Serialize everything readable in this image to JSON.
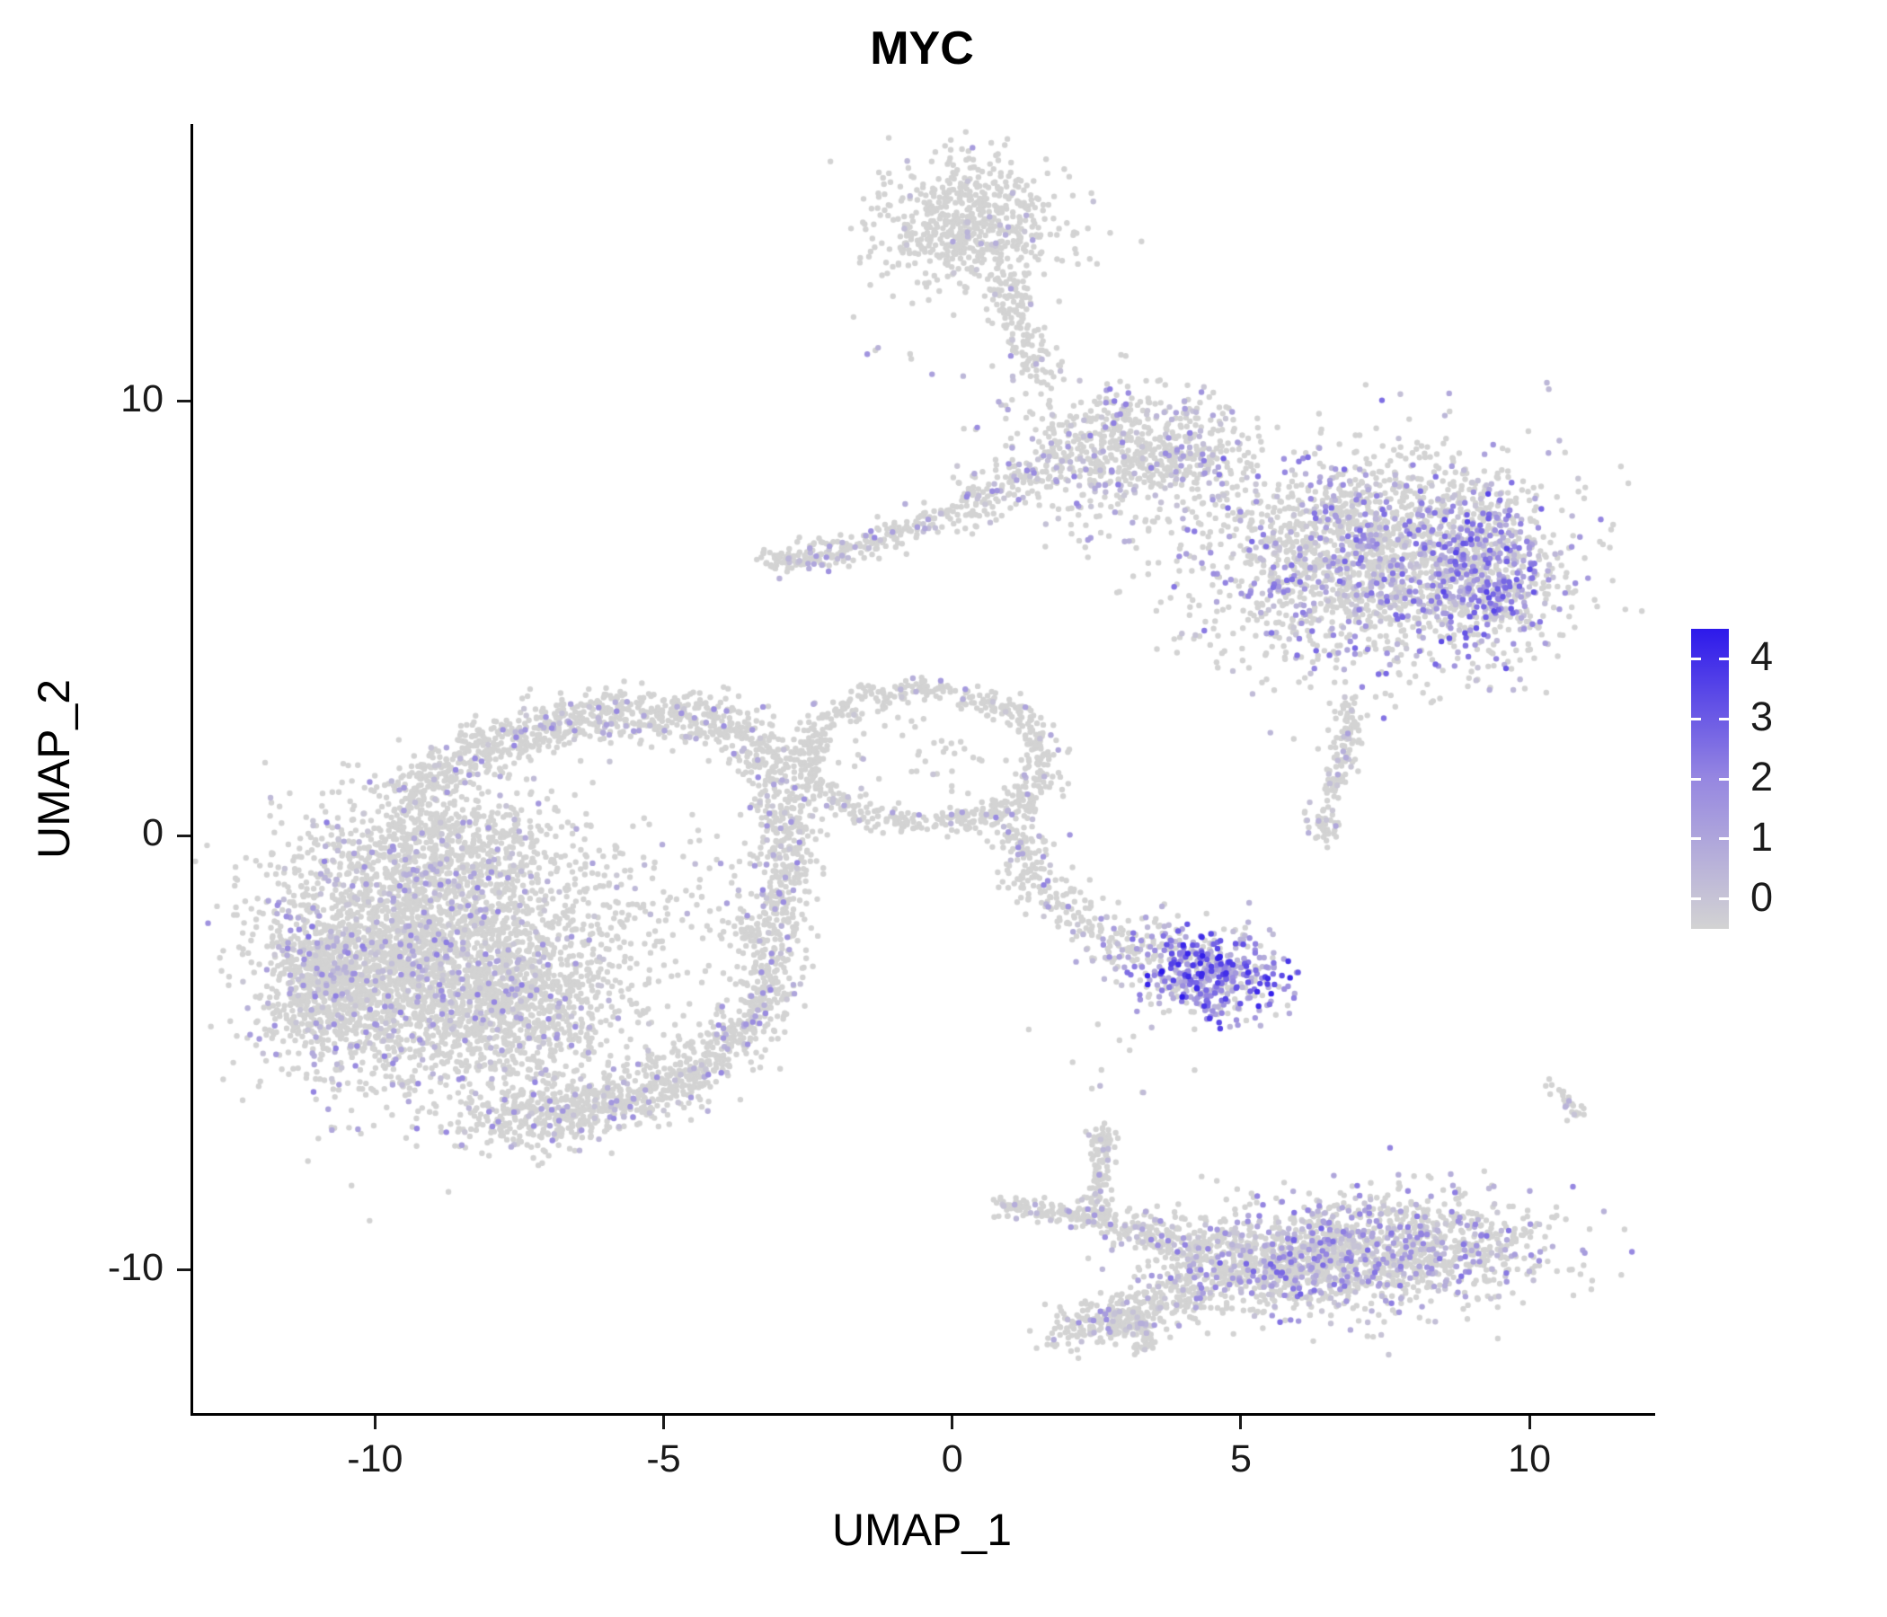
{
  "chart_data": {
    "type": "scatter",
    "title": "MYC",
    "xlabel": "UMAP_1",
    "ylabel": "UMAP_2",
    "xlim": [
      -13.15,
      12.1
    ],
    "ylim": [
      -13.3,
      16.35
    ],
    "x_ticks": [
      -10,
      -5,
      0,
      5,
      10
    ],
    "y_ticks": [
      -10,
      0,
      10
    ],
    "grid": false,
    "point_color_low": "#d3d3d3",
    "point_color_mid": "#9687e1",
    "point_color_high": "#2d19eb",
    "legend": {
      "ticks": [
        0,
        1,
        2,
        3,
        4
      ],
      "min": -0.5,
      "max": 4.5
    },
    "clusters": [
      {
        "name": "top-blob",
        "kind": "blob",
        "cx": 0.3,
        "cy": 14.1,
        "sx": 0.85,
        "sy": 0.75,
        "n": 620,
        "frac": 0.05,
        "lmin": 0.3,
        "lmax": 1.5
      },
      {
        "name": "top-stream",
        "kind": "band",
        "x1": 0.95,
        "y1": 12.9,
        "x2": 1.7,
        "y2": 10.4,
        "cx": 1.05,
        "cy": 11.6,
        "w": 0.2,
        "n": 150,
        "frac": 0.08,
        "lmin": 0.3,
        "lmax": 1.8
      },
      {
        "name": "neck",
        "kind": "blob",
        "cx": 2.6,
        "cy": 8.8,
        "sx": 0.85,
        "sy": 0.8,
        "n": 520,
        "frac": 0.18,
        "lmin": 0.3,
        "lmax": 2.2
      },
      {
        "name": "neck-bridge",
        "kind": "blob",
        "cx": 4.0,
        "cy": 9.0,
        "sx": 0.6,
        "sy": 0.6,
        "n": 220,
        "frac": 0.25,
        "lmin": 0.3,
        "lmax": 2.2
      },
      {
        "name": "right-main",
        "kind": "blob",
        "cx": 7.3,
        "cy": 6.4,
        "sx": 1.5,
        "sy": 1.25,
        "n": 2100,
        "frac": 0.3,
        "lmin": 0.3,
        "lmax": 2.6
      },
      {
        "name": "right-dense-edge",
        "kind": "blob",
        "cx": 9.25,
        "cy": 6.0,
        "sx": 0.55,
        "sy": 1.0,
        "n": 420,
        "frac": 0.6,
        "lmin": 0.5,
        "lmax": 3.2
      },
      {
        "name": "left-arm",
        "kind": "band",
        "x1": -3.25,
        "y1": 6.3,
        "x2": -0.1,
        "y2": 7.35,
        "cx": -1.8,
        "cy": 6.5,
        "w": 0.17,
        "n": 230,
        "frac": 0.15,
        "lmin": 0.3,
        "lmax": 2.0
      },
      {
        "name": "arm-bridge",
        "kind": "band",
        "x1": 0.1,
        "y1": 7.5,
        "x2": 1.4,
        "y2": 8.4,
        "cx": 0.7,
        "cy": 7.8,
        "w": 0.25,
        "n": 110,
        "frac": 0.15,
        "lmin": 0.3,
        "lmax": 2.0
      },
      {
        "name": "right-tail",
        "kind": "band",
        "x1": 6.85,
        "y1": 3.2,
        "x2": 6.55,
        "y2": 1.0,
        "cx": 6.9,
        "cy": 2.0,
        "w": 0.13,
        "n": 120,
        "frac": 0.1,
        "lmin": 0.3,
        "lmax": 1.5
      },
      {
        "name": "right-tail-tip",
        "kind": "blob",
        "cx": 6.45,
        "cy": 0.3,
        "sx": 0.18,
        "sy": 0.22,
        "n": 45,
        "frac": 0.1,
        "lmin": 0.3,
        "lmax": 1.2
      },
      {
        "name": "center-ring",
        "kind": "ring",
        "cx": -0.45,
        "cy": 1.8,
        "rx": 2.05,
        "ry": 1.55,
        "w": 0.09,
        "n": 640,
        "frac": 0.07,
        "lmin": 0.3,
        "lmax": 1.6
      },
      {
        "name": "ring-fill-sparse",
        "kind": "blob",
        "cx": -0.45,
        "cy": 1.8,
        "sx": 0.8,
        "sy": 0.6,
        "n": 40,
        "frac": 0.1,
        "lmin": 0.3,
        "lmax": 1.2
      },
      {
        "name": "ring-tail",
        "kind": "band",
        "x1": 1.0,
        "y1": 0.6,
        "x2": 2.9,
        "y2": -2.4,
        "cx": 1.15,
        "cy": -1.4,
        "w": 0.28,
        "n": 230,
        "frac": 0.12,
        "lmin": 0.3,
        "lmax": 2.2
      },
      {
        "name": "midright-sparse",
        "kind": "blob",
        "cx": 3.4,
        "cy": -2.7,
        "sx": 0.5,
        "sy": 0.5,
        "n": 140,
        "frac": 0.3,
        "lmin": 0.4,
        "lmax": 2.5
      },
      {
        "name": "midright-dense",
        "kind": "blob",
        "cx": 4.55,
        "cy": -3.2,
        "sx": 0.6,
        "sy": 0.5,
        "n": 430,
        "frac": 0.78,
        "lmin": 0.6,
        "lmax": 4.0
      },
      {
        "name": "left-top-arc",
        "kind": "band",
        "x1": -9.6,
        "y1": 0.7,
        "x2": -3.5,
        "y2": 2.4,
        "cx": -6.8,
        "cy": 3.7,
        "w": 0.3,
        "n": 780,
        "frac": 0.1,
        "lmin": 0.3,
        "lmax": 2.0
      },
      {
        "name": "left-right-edge-upper",
        "kind": "band",
        "x1": -3.5,
        "y1": 2.3,
        "x2": -3.2,
        "y2": -2.0,
        "cx": -2.35,
        "cy": 0.2,
        "w": 0.28,
        "n": 430,
        "frac": 0.1,
        "lmin": 0.3,
        "lmax": 2.0
      },
      {
        "name": "left-right-edge-lower",
        "kind": "band",
        "x1": -3.2,
        "y1": -2.0,
        "x2": -4.5,
        "y2": -5.4,
        "cx": -2.95,
        "cy": -4.3,
        "w": 0.3,
        "n": 430,
        "frac": 0.1,
        "lmin": 0.3,
        "lmax": 2.0
      },
      {
        "name": "left-bottom-band",
        "kind": "band",
        "x1": -4.5,
        "y1": -5.4,
        "x2": -8.1,
        "y2": -6.5,
        "cx": -6.2,
        "cy": -6.6,
        "w": 0.38,
        "n": 620,
        "frac": 0.1,
        "lmin": 0.3,
        "lmax": 2.0
      },
      {
        "name": "left-main-blob",
        "kind": "blob",
        "cx": -9.4,
        "cy": -2.9,
        "sx": 1.25,
        "sy": 1.5,
        "n": 2300,
        "frac": 0.13,
        "lmin": 0.3,
        "lmax": 2.2
      },
      {
        "name": "left-edge-dense",
        "kind": "blob",
        "cx": -10.9,
        "cy": -3.3,
        "sx": 0.5,
        "sy": 0.85,
        "n": 480,
        "frac": 0.15,
        "lmin": 0.3,
        "lmax": 2.4
      },
      {
        "name": "left-mid-blob",
        "kind": "blob",
        "cx": -7.5,
        "cy": -3.8,
        "sx": 1.0,
        "sy": 1.1,
        "n": 850,
        "frac": 0.1,
        "lmin": 0.3,
        "lmax": 2.0
      },
      {
        "name": "left-upper-fill",
        "kind": "blob",
        "cx": -8.7,
        "cy": -0.5,
        "sx": 1.0,
        "sy": 0.85,
        "n": 680,
        "frac": 0.1,
        "lmin": 0.3,
        "lmax": 2.0
      },
      {
        "name": "left-hollow-sparse",
        "kind": "blob",
        "cx": -5.8,
        "cy": -1.8,
        "sx": 1.1,
        "sy": 1.1,
        "n": 220,
        "frac": 0.08,
        "lmin": 0.3,
        "lmax": 1.5
      },
      {
        "name": "bottom-main",
        "kind": "blob",
        "cx": 7.6,
        "cy": -9.5,
        "sx": 1.35,
        "sy": 0.65,
        "n": 1150,
        "frac": 0.28,
        "lmin": 0.3,
        "lmax": 2.4
      },
      {
        "name": "bottom-mid-dense",
        "kind": "blob",
        "cx": 6.1,
        "cy": -10.0,
        "sx": 0.6,
        "sy": 0.45,
        "n": 280,
        "frac": 0.45,
        "lmin": 0.4,
        "lmax": 2.8
      },
      {
        "name": "bottom-second",
        "kind": "blob",
        "cx": 4.9,
        "cy": -9.9,
        "sx": 0.85,
        "sy": 0.6,
        "n": 430,
        "frac": 0.22,
        "lmin": 0.3,
        "lmax": 2.2
      },
      {
        "name": "bottom-left-tail",
        "kind": "band",
        "x1": 4.0,
        "y1": -10.6,
        "x2": 1.9,
        "y2": -11.5,
        "cx": 2.9,
        "cy": -11.1,
        "w": 0.27,
        "n": 270,
        "frac": 0.1,
        "lmin": 0.3,
        "lmax": 1.8
      },
      {
        "name": "bottom-spur-down",
        "kind": "band",
        "x1": 3.1,
        "y1": -11.0,
        "x2": 3.4,
        "y2": -11.9,
        "cx": 3.2,
        "cy": -11.4,
        "w": 0.13,
        "n": 80,
        "frac": 0.1,
        "lmin": 0.3,
        "lmax": 1.5
      },
      {
        "name": "bottom-arm-horizontal",
        "kind": "band",
        "x1": 0.75,
        "y1": -8.55,
        "x2": 2.6,
        "y2": -8.85,
        "cx": 1.65,
        "cy": -8.6,
        "w": 0.13,
        "n": 130,
        "frac": 0.1,
        "lmin": 0.3,
        "lmax": 1.5
      },
      {
        "name": "bottom-arm-vertical",
        "kind": "band",
        "x1": 2.6,
        "y1": -7.1,
        "x2": 2.5,
        "y2": -8.8,
        "cx": 2.5,
        "cy": -7.9,
        "w": 0.11,
        "n": 95,
        "frac": 0.08,
        "lmin": 0.3,
        "lmax": 1.5
      },
      {
        "name": "bottom-arm-knob",
        "kind": "blob",
        "cx": 2.62,
        "cy": -6.95,
        "sx": 0.13,
        "sy": 0.13,
        "n": 30,
        "frac": 0.1,
        "lmin": 0.3,
        "lmax": 1.2
      },
      {
        "name": "bottom-connector",
        "kind": "band",
        "x1": 2.7,
        "y1": -8.9,
        "x2": 4.5,
        "y2": -9.5,
        "cx": 3.6,
        "cy": -9.2,
        "w": 0.24,
        "n": 170,
        "frac": 0.15,
        "lmin": 0.3,
        "lmax": 2.0
      },
      {
        "name": "isolated-small",
        "kind": "band",
        "x1": 10.35,
        "y1": -5.75,
        "x2": 10.9,
        "y2": -6.45,
        "cx": 10.6,
        "cy": -6.1,
        "w": 0.09,
        "n": 26,
        "frac": 0.08,
        "lmin": 0.3,
        "lmax": 1.0
      },
      {
        "name": "stray-upper",
        "kind": "blob",
        "cx": 0.4,
        "cy": 10.9,
        "sx": 1.0,
        "sy": 0.45,
        "n": 10,
        "frac": 0.3,
        "lmin": 0.5,
        "lmax": 2.0
      },
      {
        "name": "stray-mid",
        "kind": "blob",
        "cx": 2.6,
        "cy": -5.3,
        "sx": 0.6,
        "sy": 0.45,
        "n": 12,
        "frac": 0.15,
        "lmin": 0.3,
        "lmax": 1.2
      }
    ]
  }
}
